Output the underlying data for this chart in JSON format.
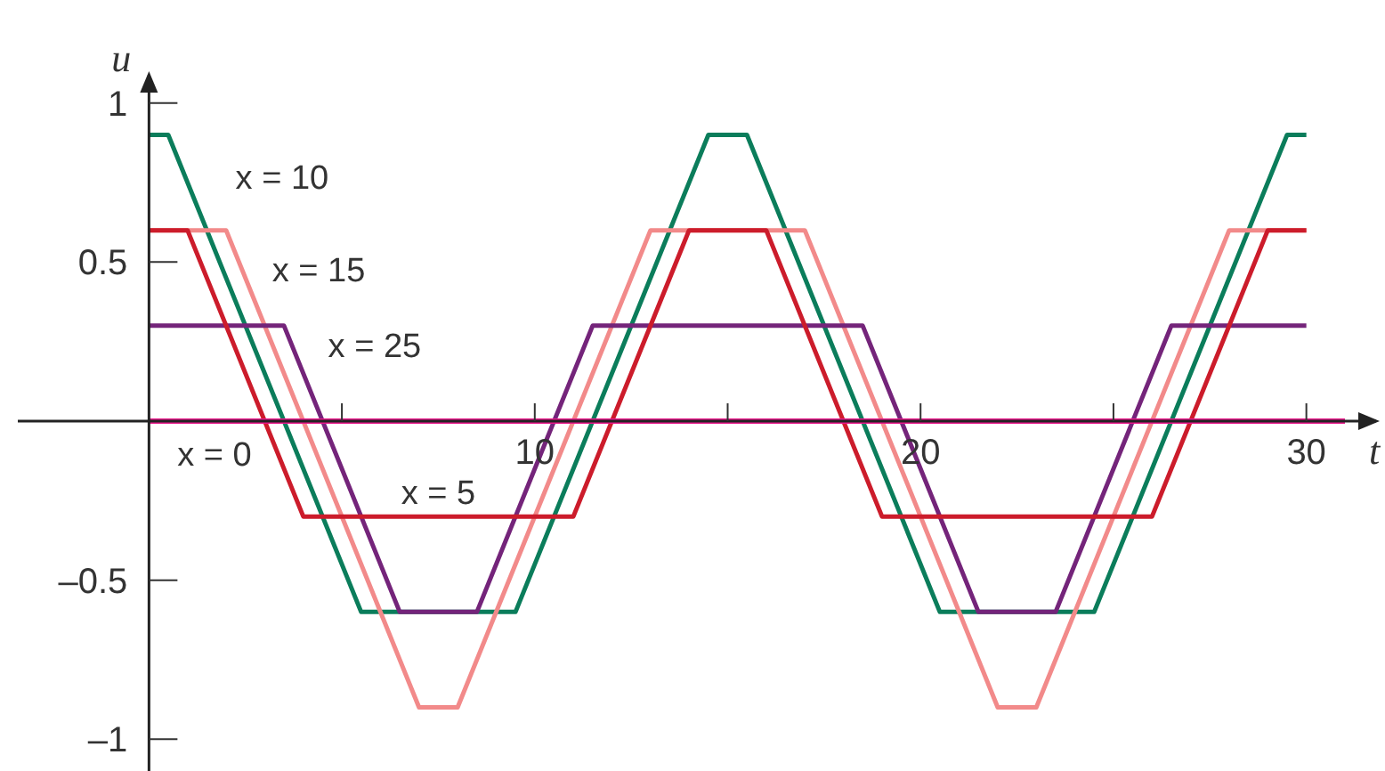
{
  "chart_data": {
    "type": "line",
    "xlabel": "t",
    "ylabel": "u",
    "xlim": [
      -3.4,
      31.9
    ],
    "ylim": [
      -1.1,
      1.1
    ],
    "xticks": [
      {
        "value": 5,
        "label": null
      },
      10,
      {
        "value": 15,
        "label": null
      },
      20,
      {
        "value": 25,
        "label": null
      },
      30
    ],
    "yticks": [
      {
        "value": -1,
        "label": "–1"
      },
      {
        "value": -0.5,
        "label": "–0.5"
      },
      0.5,
      1
    ],
    "grid": false,
    "legend": false,
    "marker": "none",
    "line_style": "solid",
    "series": [
      {
        "name": "x = 10",
        "color": "#0b7d5b",
        "x": [
          0,
          0.5,
          5.5,
          9.5,
          14.5,
          15.5,
          20.5,
          24.5,
          29.5,
          30
        ],
        "values": [
          0.9,
          0.9,
          -0.6,
          -0.6,
          0.9,
          0.9,
          -0.6,
          -0.6,
          0.9,
          0.9
        ]
      },
      {
        "name": "x = 15",
        "color": "#f28a8a",
        "x": [
          0,
          2,
          7,
          8,
          13,
          17,
          22,
          23,
          28,
          30
        ],
        "values": [
          0.6,
          0.6,
          -0.9,
          -0.9,
          0.6,
          0.6,
          -0.9,
          -0.9,
          0.6,
          0.6
        ]
      },
      {
        "name": "x = 25",
        "color": "#74247a",
        "x": [
          0,
          3.5,
          6.5,
          8.5,
          11.5,
          18.5,
          21.5,
          23.5,
          26.5,
          30
        ],
        "values": [
          0.3,
          0.3,
          -0.6,
          -0.6,
          0.3,
          0.3,
          -0.6,
          -0.6,
          0.3,
          0.3
        ]
      },
      {
        "name": "x = 5",
        "color": "#cc1c2b",
        "x": [
          0,
          1,
          4,
          11,
          14,
          16,
          19,
          26,
          29,
          30
        ],
        "values": [
          0.6,
          0.6,
          -0.3,
          -0.3,
          0.6,
          0.6,
          -0.3,
          -0.3,
          0.6,
          0.6
        ]
      },
      {
        "name": "x = 0",
        "color": "#e8168a",
        "x": [
          0,
          31
        ],
        "values": [
          0,
          0
        ]
      }
    ]
  }
}
